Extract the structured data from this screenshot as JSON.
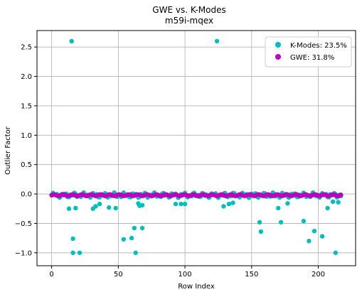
{
  "chart_data": {
    "type": "scatter",
    "title": "GWE vs. K-Modes",
    "subtitle": "m59i-mqex",
    "xlabel": "Row Index",
    "ylabel": "Outlier Factor",
    "xlim": [
      -11,
      228
    ],
    "ylim": [
      -1.22,
      2.78
    ],
    "xticks": [
      0,
      50,
      100,
      150,
      200
    ],
    "yticks": [
      -1.0,
      -0.5,
      0.0,
      0.5,
      1.0,
      1.5,
      2.0,
      2.5
    ],
    "xtick_labels": [
      "0",
      "50",
      "100",
      "150",
      "200"
    ],
    "ytick_labels": [
      "−1.0",
      "−0.5",
      "0.0",
      "0.5",
      "1.0",
      "1.5",
      "2.0",
      "2.5"
    ],
    "grid": true,
    "legend_position": "top-right",
    "series": [
      {
        "name": "K-Modes: 23.5%",
        "color": "#00bfbf",
        "outliers": [
          {
            "x": 15,
            "y": 2.6
          },
          {
            "x": 124,
            "y": 2.6
          },
          {
            "x": 13,
            "y": -0.25
          },
          {
            "x": 18,
            "y": -0.24
          },
          {
            "x": 16,
            "y": -0.76
          },
          {
            "x": 16,
            "y": -1.0
          },
          {
            "x": 21,
            "y": -1.0
          },
          {
            "x": 31,
            "y": -0.25
          },
          {
            "x": 33,
            "y": -0.21
          },
          {
            "x": 36,
            "y": -0.17
          },
          {
            "x": 43,
            "y": -0.23
          },
          {
            "x": 48,
            "y": -0.24
          },
          {
            "x": 54,
            "y": -0.77
          },
          {
            "x": 60,
            "y": -0.75
          },
          {
            "x": 62,
            "y": -0.58
          },
          {
            "x": 63,
            "y": -1.0
          },
          {
            "x": 65,
            "y": -0.16
          },
          {
            "x": 66,
            "y": -0.2
          },
          {
            "x": 68,
            "y": -0.19
          },
          {
            "x": 68,
            "y": -0.58
          },
          {
            "x": 93,
            "y": -0.17
          },
          {
            "x": 97,
            "y": -0.17
          },
          {
            "x": 100,
            "y": -0.17
          },
          {
            "x": 129,
            "y": -0.21
          },
          {
            "x": 133,
            "y": -0.17
          },
          {
            "x": 136,
            "y": -0.15
          },
          {
            "x": 156,
            "y": -0.48
          },
          {
            "x": 157,
            "y": -0.64
          },
          {
            "x": 170,
            "y": -0.24
          },
          {
            "x": 172,
            "y": -0.48
          },
          {
            "x": 177,
            "y": -0.16
          },
          {
            "x": 189,
            "y": -0.46
          },
          {
            "x": 193,
            "y": -0.8
          },
          {
            "x": 197,
            "y": -0.63
          },
          {
            "x": 203,
            "y": -0.72
          },
          {
            "x": 207,
            "y": -0.24
          },
          {
            "x": 211,
            "y": -0.13
          },
          {
            "x": 213,
            "y": -1.0
          },
          {
            "x": 215,
            "y": -0.14
          }
        ]
      },
      {
        "name": "GWE: 31.8%",
        "color": "#bf00bf"
      }
    ]
  }
}
